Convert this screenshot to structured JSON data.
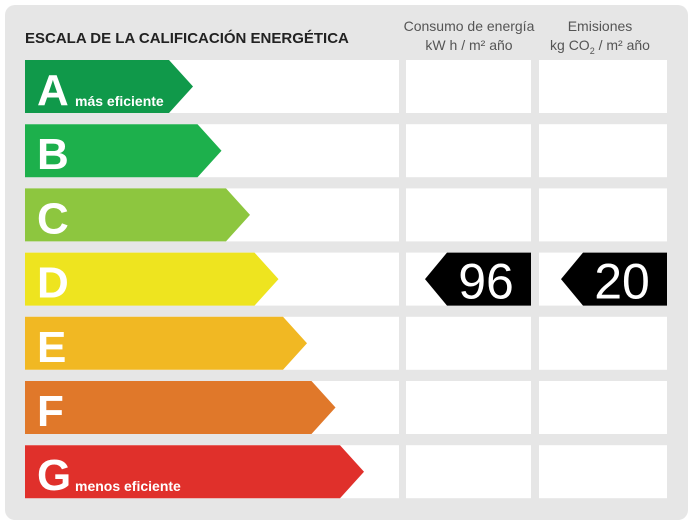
{
  "header": {
    "title": "ESCALA DE LA CALIFICACIÓN ENERGÉTICA",
    "consumption": {
      "line1": "Consumo de energía",
      "line2": "kW h  / m² año"
    },
    "emissions": {
      "line1": "Emisiones",
      "line2a": "kg CO",
      "line2sub": "2",
      "line2b": " / m² año"
    }
  },
  "rows": [
    {
      "letter": "A",
      "label": "más eficiente",
      "color": "#10994a"
    },
    {
      "letter": "B",
      "color": "#1db04c"
    },
    {
      "letter": "C",
      "color": "#8dc63f"
    },
    {
      "letter": "D",
      "color": "#eee41f",
      "consumption": 96,
      "emissions": 20
    },
    {
      "letter": "E",
      "color": "#f1b823"
    },
    {
      "letter": "F",
      "color": "#e0782a"
    },
    {
      "letter": "G",
      "label": "menos eficiente",
      "color": "#e0302b"
    }
  ]
}
